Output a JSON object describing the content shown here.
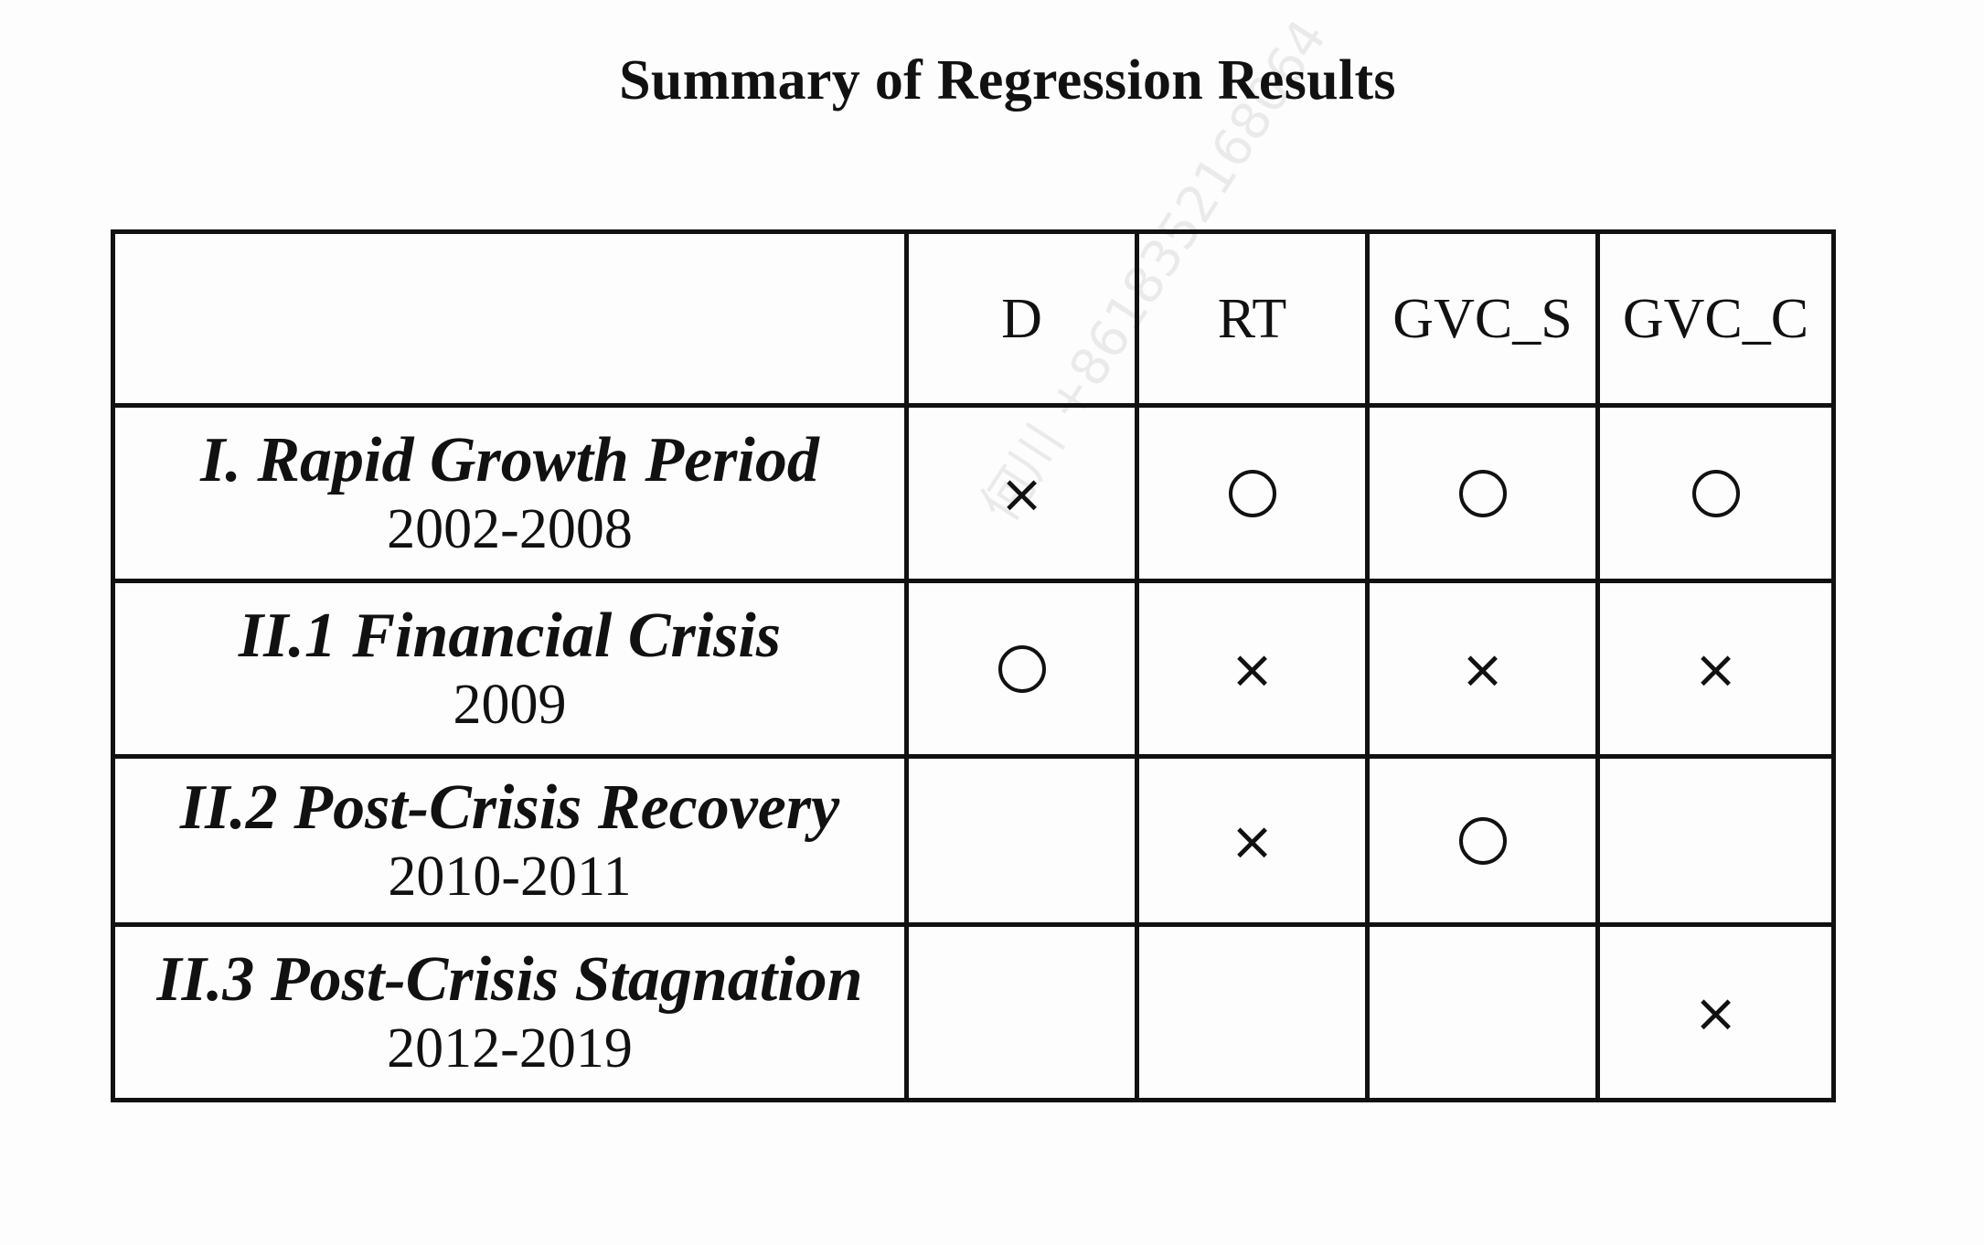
{
  "title": "Summary of Regression Results",
  "watermark": "何川 +8618352168064",
  "table": {
    "corner": "",
    "columns": [
      "D",
      "RT",
      "GVC_S",
      "GVC_C"
    ],
    "rows": [
      {
        "name": "I. Rapid Growth Period",
        "years": "2002-2008",
        "cells": [
          "×",
          "○",
          "○",
          "○"
        ]
      },
      {
        "name": "II.1 Financial Crisis",
        "years": "2009",
        "cells": [
          "○",
          "×",
          "×",
          "×"
        ]
      },
      {
        "name": "II.2 Post-Crisis Recovery",
        "years": "2010-2011",
        "cells": [
          "",
          "×",
          "○",
          ""
        ]
      },
      {
        "name": "II.3 Post-Crisis Stagnation",
        "years": "2012-2019",
        "cells": [
          "",
          "",
          "",
          "×"
        ]
      }
    ]
  }
}
